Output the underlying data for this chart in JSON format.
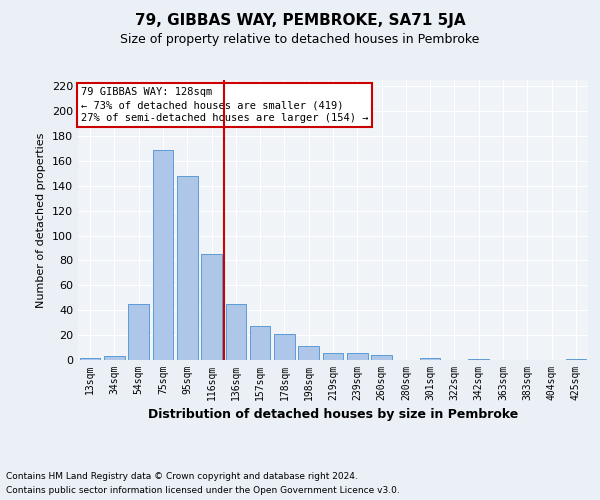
{
  "title": "79, GIBBAS WAY, PEMBROKE, SA71 5JA",
  "subtitle": "Size of property relative to detached houses in Pembroke",
  "xlabel": "Distribution of detached houses by size in Pembroke",
  "ylabel": "Number of detached properties",
  "footnote1": "Contains HM Land Registry data © Crown copyright and database right 2024.",
  "footnote2": "Contains public sector information licensed under the Open Government Licence v3.0.",
  "categories": [
    "13sqm",
    "34sqm",
    "54sqm",
    "75sqm",
    "95sqm",
    "116sqm",
    "136sqm",
    "157sqm",
    "178sqm",
    "198sqm",
    "219sqm",
    "239sqm",
    "260sqm",
    "280sqm",
    "301sqm",
    "322sqm",
    "342sqm",
    "363sqm",
    "383sqm",
    "404sqm",
    "425sqm"
  ],
  "values": [
    2,
    3,
    45,
    169,
    148,
    85,
    45,
    27,
    21,
    11,
    6,
    6,
    4,
    0,
    2,
    0,
    1,
    0,
    0,
    0,
    1
  ],
  "bar_color": "#aec6e8",
  "bar_edge_color": "#5b9bd5",
  "vline_pos": 5.5,
  "vline_color": "#cc0000",
  "ylim": [
    0,
    225
  ],
  "yticks": [
    0,
    20,
    40,
    60,
    80,
    100,
    120,
    140,
    160,
    180,
    200,
    220
  ],
  "annotation_title": "79 GIBBAS WAY: 128sqm",
  "annotation_line1": "← 73% of detached houses are smaller (419)",
  "annotation_line2": "27% of semi-detached houses are larger (154) →",
  "annotation_box_color": "#cc0000",
  "bg_color": "#eaf0f6",
  "plot_bg_color": "#f0f4f8",
  "grid_color": "#ffffff",
  "title_fontsize": 11,
  "subtitle_fontsize": 9,
  "ylabel_fontsize": 8,
  "xlabel_fontsize": 9,
  "tick_fontsize": 7,
  "annot_fontsize": 7.5,
  "footnote_fontsize": 6.5
}
